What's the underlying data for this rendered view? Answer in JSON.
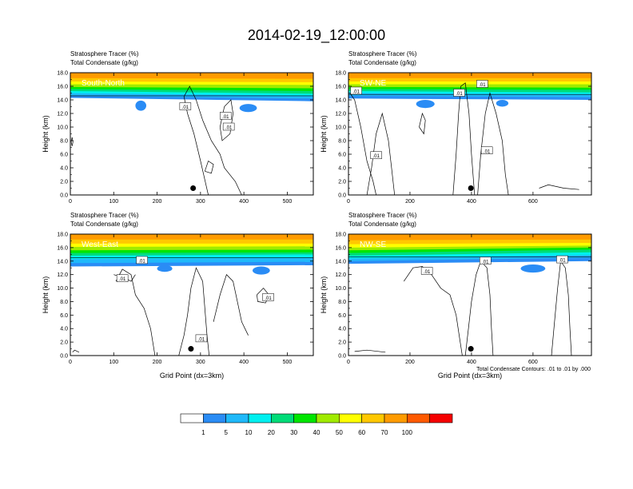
{
  "figure": {
    "title": "2014-02-19_12:00:00",
    "footnote": "Total Condensate Contours: .01 to .01 by .000"
  },
  "chart_data": [
    {
      "type": "heatmap",
      "panel_label": "South-North",
      "header_lines": [
        "Stratosphere Tracer   (%)",
        "Total Condensate   (g/kg)"
      ],
      "ylabel": "Height (km)",
      "xlabel": "",
      "xlim": [
        0,
        560
      ],
      "ylim": [
        0,
        18
      ],
      "xticks": [
        0,
        100,
        200,
        300,
        400,
        500
      ],
      "yticks": [
        "0.0",
        "2.0",
        "4.0",
        "6.0",
        "8.0",
        "10.0",
        "12.0",
        "14.0",
        "16.0",
        "18.0"
      ],
      "marker": {
        "x": 283,
        "y": 1.0
      },
      "contour_labels": [
        {
          "text": ".01",
          "x": 265,
          "y": 13.0
        },
        {
          "text": ".01",
          "x": 358,
          "y": 11.6
        },
        {
          "text": ".01",
          "x": 365,
          "y": 10.0
        }
      ],
      "tropopause_km": 14.6,
      "tracer_bands": [
        {
          "left": 14.3,
          "right": 13.8
        },
        {
          "left": 14.6,
          "right": 14.2
        },
        {
          "left": 15.0,
          "right": 14.6
        },
        {
          "left": 15.3,
          "right": 14.9
        },
        {
          "left": 15.6,
          "right": 15.3
        },
        {
          "left": 15.9,
          "right": 15.7
        },
        {
          "left": 16.3,
          "right": 16.2
        },
        {
          "left": 16.7,
          "right": 16.6
        },
        {
          "left": 17.2,
          "right": 17.1
        }
      ],
      "blue_patches": [
        {
          "x": 150,
          "y": 12.4,
          "w": 25,
          "h": 1.5
        },
        {
          "x": 390,
          "y": 12.2,
          "w": 40,
          "h": 1.2
        }
      ],
      "contour_paths": [
        [
          [
            318,
            0
          ],
          [
            300,
            5
          ],
          [
            285,
            9
          ],
          [
            270,
            12
          ],
          [
            262,
            14.5
          ],
          [
            275,
            16
          ],
          [
            290,
            14
          ],
          [
            305,
            11
          ],
          [
            325,
            8
          ],
          [
            345,
            6
          ],
          [
            355,
            4
          ],
          [
            380,
            2
          ],
          [
            395,
            0
          ]
        ],
        [
          [
            345,
            10
          ],
          [
            355,
            13
          ],
          [
            370,
            14
          ],
          [
            375,
            12
          ],
          [
            368,
            9
          ],
          [
            350,
            8
          ],
          [
            345,
            10
          ]
        ],
        [
          [
            310,
            3.5
          ],
          [
            318,
            5
          ],
          [
            330,
            4.5
          ],
          [
            325,
            3.2
          ],
          [
            310,
            3.5
          ]
        ],
        [
          [
            2,
            7.8
          ],
          [
            4,
            8.5
          ],
          [
            6,
            7.8
          ],
          [
            4,
            7.2
          ],
          [
            2,
            7.8
          ]
        ]
      ]
    },
    {
      "type": "heatmap",
      "panel_label": "SW-NE",
      "header_lines": [
        "Stratosphere Tracer   (%)",
        "Total Condensate   (g/kg)"
      ],
      "ylabel": "Height (km)",
      "xlabel": "",
      "xlim": [
        0,
        790
      ],
      "ylim": [
        0,
        18
      ],
      "xticks": [
        0,
        200,
        400,
        600
      ],
      "yticks": [
        "0.0",
        "2.0",
        "4.0",
        "6.0",
        "8.0",
        "10.0",
        "12.0",
        "14.0",
        "16.0",
        "18.0"
      ],
      "marker": {
        "x": 398,
        "y": 1.0
      },
      "contour_labels": [
        {
          "text": ".01",
          "x": 25,
          "y": 15.3
        },
        {
          "text": ".01",
          "x": 360,
          "y": 15.0
        },
        {
          "text": ".01",
          "x": 435,
          "y": 16.3
        },
        {
          "text": ".01",
          "x": 90,
          "y": 5.8
        },
        {
          "text": ".01",
          "x": 450,
          "y": 6.5
        }
      ],
      "tropopause_km": 14.8,
      "tracer_bands": [
        {
          "left": 14.2,
          "right": 14.0
        },
        {
          "left": 14.6,
          "right": 14.4
        },
        {
          "left": 15.0,
          "right": 14.8
        },
        {
          "left": 15.3,
          "right": 15.1
        },
        {
          "left": 15.6,
          "right": 15.5
        },
        {
          "left": 15.9,
          "right": 15.8
        },
        {
          "left": 16.3,
          "right": 16.3
        },
        {
          "left": 16.7,
          "right": 16.7
        },
        {
          "left": 17.2,
          "right": 17.2
        }
      ],
      "blue_patches": [
        {
          "x": 220,
          "y": 12.8,
          "w": 60,
          "h": 1.2
        },
        {
          "x": 480,
          "y": 13.0,
          "w": 40,
          "h": 1.0
        }
      ],
      "contour_paths": [
        [
          [
            5,
            15
          ],
          [
            20,
            14
          ],
          [
            40,
            10
          ],
          [
            60,
            5
          ],
          [
            80,
            2
          ],
          [
            90,
            0
          ]
        ],
        [
          [
            60,
            0
          ],
          [
            75,
            4
          ],
          [
            90,
            9
          ],
          [
            110,
            12
          ],
          [
            130,
            8
          ],
          [
            140,
            4
          ],
          [
            150,
            0
          ]
        ],
        [
          [
            340,
            0
          ],
          [
            350,
            6
          ],
          [
            358,
            12
          ],
          [
            365,
            16
          ],
          [
            380,
            16.5
          ],
          [
            392,
            12
          ],
          [
            400,
            6
          ],
          [
            410,
            0
          ]
        ],
        [
          [
            420,
            0
          ],
          [
            430,
            6
          ],
          [
            445,
            12
          ],
          [
            460,
            15
          ],
          [
            480,
            12
          ],
          [
            500,
            8
          ],
          [
            510,
            3
          ],
          [
            520,
            0
          ]
        ],
        [
          [
            230,
            10
          ],
          [
            240,
            12
          ],
          [
            250,
            11
          ],
          [
            245,
            9
          ],
          [
            230,
            10
          ]
        ],
        [
          [
            620,
            1
          ],
          [
            650,
            1.5
          ],
          [
            700,
            1
          ],
          [
            750,
            0.8
          ]
        ]
      ]
    },
    {
      "type": "heatmap",
      "panel_label": "West-East",
      "header_lines": [
        "Stratosphere Tracer   (%)",
        "Total Condensate   (g/kg)"
      ],
      "ylabel": "Height (km)",
      "xlabel": "Grid Point (dx=3km)",
      "xlim": [
        0,
        560
      ],
      "ylim": [
        0,
        18
      ],
      "xticks": [
        0,
        100,
        200,
        300,
        400,
        500
      ],
      "yticks": [
        "0.0",
        "2.0",
        "4.0",
        "6.0",
        "8.0",
        "10.0",
        "12.0",
        "14.0",
        "16.0",
        "18.0"
      ],
      "marker": {
        "x": 278,
        "y": 1.0
      },
      "contour_labels": [
        {
          "text": ".01",
          "x": 165,
          "y": 14.1
        },
        {
          "text": ".01",
          "x": 120,
          "y": 11.4
        },
        {
          "text": ".01",
          "x": 456,
          "y": 8.6
        },
        {
          "text": ".01",
          "x": 302,
          "y": 2.5
        }
      ],
      "tropopause_km": 14.5,
      "tracer_bands": [
        {
          "left": 13.2,
          "right": 13.4
        },
        {
          "left": 13.7,
          "right": 13.9
        },
        {
          "left": 14.3,
          "right": 14.5
        },
        {
          "left": 14.8,
          "right": 15.0
        },
        {
          "left": 15.2,
          "right": 15.3
        },
        {
          "left": 15.6,
          "right": 15.7
        },
        {
          "left": 16.1,
          "right": 16.2
        },
        {
          "left": 16.6,
          "right": 16.6
        },
        {
          "left": 17.2,
          "right": 17.2
        }
      ],
      "blue_patches": [
        {
          "x": 200,
          "y": 12.4,
          "w": 35,
          "h": 1.0
        },
        {
          "x": 420,
          "y": 12.0,
          "w": 40,
          "h": 1.2
        }
      ],
      "contour_paths": [
        [
          [
            105,
            11
          ],
          [
            120,
            12.8
          ],
          [
            140,
            12
          ],
          [
            150,
            9
          ],
          [
            170,
            7
          ],
          [
            185,
            4
          ],
          [
            195,
            0
          ]
        ],
        [
          [
            250,
            0
          ],
          [
            262,
            3
          ],
          [
            270,
            6
          ],
          [
            278,
            10
          ],
          [
            290,
            13
          ],
          [
            305,
            11
          ],
          [
            310,
            7
          ],
          [
            315,
            3
          ],
          [
            320,
            0
          ]
        ],
        [
          [
            330,
            5
          ],
          [
            345,
            9
          ],
          [
            360,
            12
          ],
          [
            375,
            11
          ],
          [
            385,
            8
          ],
          [
            395,
            5
          ],
          [
            410,
            3
          ]
        ],
        [
          [
            430,
            9
          ],
          [
            445,
            10
          ],
          [
            458,
            9
          ],
          [
            450,
            7.8
          ],
          [
            432,
            8
          ],
          [
            430,
            9
          ]
        ],
        [
          [
            100,
            12
          ],
          [
            125,
            11.5
          ],
          [
            140,
            11
          ],
          [
            150,
            12
          ]
        ],
        [
          [
            5,
            0.5
          ],
          [
            10,
            0.8
          ],
          [
            20,
            0.5
          ]
        ]
      ]
    },
    {
      "type": "heatmap",
      "panel_label": "NW-SE",
      "header_lines": [
        "Stratosphere Tracer   (%)",
        "Total Condensate   (g/kg)"
      ],
      "ylabel": "Height (km)",
      "xlabel": "Grid Point (dx=3km)",
      "xlim": [
        0,
        790
      ],
      "ylim": [
        0,
        18
      ],
      "xticks": [
        0,
        200,
        400,
        600
      ],
      "yticks": [
        "0.0",
        "2.0",
        "4.0",
        "6.0",
        "8.0",
        "10.0",
        "12.0",
        "14.0",
        "16.0",
        "18.0"
      ],
      "marker": {
        "x": 398,
        "y": 1.0
      },
      "contour_labels": [
        {
          "text": ".01",
          "x": 445,
          "y": 14.0
        },
        {
          "text": ".01",
          "x": 255,
          "y": 12.5
        },
        {
          "text": ".01",
          "x": 695,
          "y": 14.2
        }
      ],
      "tropopause_km": 14.6,
      "tracer_bands": [
        {
          "left": 13.6,
          "right": 14.0
        },
        {
          "left": 14.0,
          "right": 14.5
        },
        {
          "left": 14.4,
          "right": 14.9
        },
        {
          "left": 14.8,
          "right": 15.3
        },
        {
          "left": 15.2,
          "right": 15.7
        },
        {
          "left": 15.6,
          "right": 16.0
        },
        {
          "left": 16.0,
          "right": 16.3
        },
        {
          "left": 16.5,
          "right": 16.7
        },
        {
          "left": 17.1,
          "right": 17.2
        }
      ],
      "blue_patches": [
        {
          "x": 560,
          "y": 12.3,
          "w": 80,
          "h": 1.2
        }
      ],
      "contour_paths": [
        [
          [
            180,
            11
          ],
          [
            210,
            13
          ],
          [
            240,
            13.2
          ],
          [
            270,
            12
          ],
          [
            300,
            10
          ],
          [
            330,
            9
          ],
          [
            350,
            6
          ],
          [
            360,
            3
          ],
          [
            370,
            0
          ]
        ],
        [
          [
            380,
            0
          ],
          [
            390,
            4
          ],
          [
            400,
            8
          ],
          [
            415,
            12
          ],
          [
            430,
            14
          ],
          [
            450,
            13
          ],
          [
            460,
            9
          ],
          [
            465,
            4
          ],
          [
            470,
            0
          ]
        ],
        [
          [
            660,
            0
          ],
          [
            670,
            5
          ],
          [
            680,
            10
          ],
          [
            690,
            14
          ],
          [
            705,
            13
          ],
          [
            715,
            9
          ],
          [
            720,
            4
          ],
          [
            725,
            0
          ]
        ],
        [
          [
            20,
            0.6
          ],
          [
            60,
            0.8
          ],
          [
            120,
            0.5
          ]
        ]
      ]
    }
  ],
  "colorbar": {
    "labels": [
      "1",
      "5",
      "10",
      "20",
      "30",
      "40",
      "50",
      "60",
      "70",
      "100"
    ],
    "colors": [
      "#ffffff",
      "#2a8cf5",
      "#1fb9fa",
      "#00f0f0",
      "#00dc78",
      "#00e600",
      "#a0eb00",
      "#ffff00",
      "#ffc800",
      "#ff9b00",
      "#ff5a00",
      "#f50000"
    ]
  }
}
